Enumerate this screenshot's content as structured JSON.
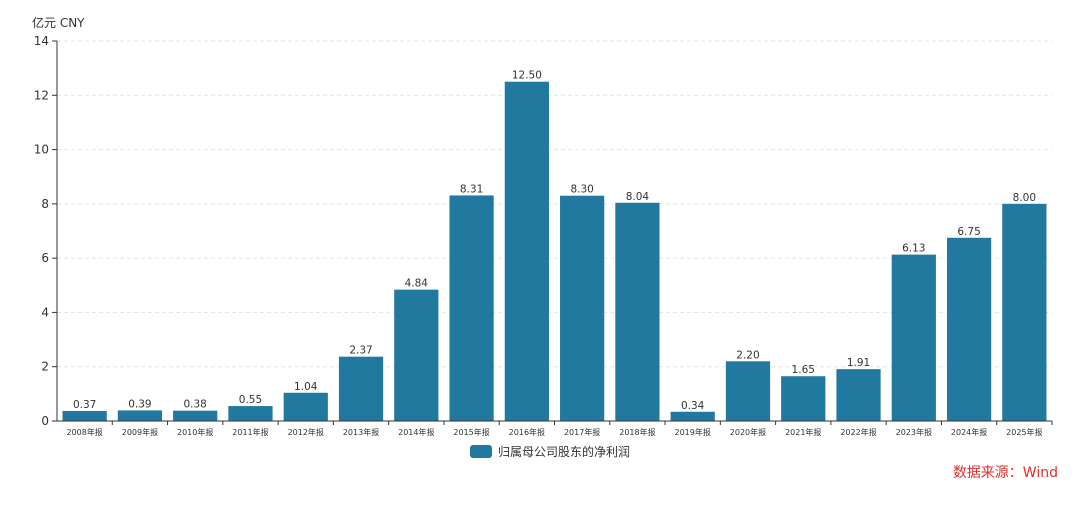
{
  "unit_label": "亿元  CNY",
  "legend_label": "归属母公司股东的净利润",
  "source_text": "数据来源：Wind",
  "colors": {
    "bar": "#21799f",
    "source": "#e0322d",
    "grid": "#e3e3e3",
    "axis": "#333333"
  },
  "chart_data": {
    "type": "bar",
    "categories": [
      "2008年报",
      "2009年报",
      "2010年报",
      "2011年报",
      "2012年报",
      "2013年报",
      "2014年报",
      "2015年报",
      "2016年报",
      "2017年报",
      "2018年报",
      "2019年报",
      "2020年报",
      "2021年报",
      "2022年报",
      "2023年报",
      "2024年报",
      "2025年报"
    ],
    "series": [
      {
        "name": "归属母公司股东的净利润",
        "values": [
          0.37,
          0.39,
          0.38,
          0.55,
          1.04,
          2.37,
          4.84,
          8.31,
          12.5,
          8.3,
          8.04,
          0.34,
          2.2,
          1.65,
          1.91,
          6.13,
          6.75,
          8.0
        ],
        "labels": [
          "0.37",
          "0.39",
          "0.38",
          "0.55",
          "1.04",
          "2.37",
          "4.84",
          "8.31",
          "12.50",
          "8.30",
          "8.04",
          "0.34",
          "2.20",
          "1.65",
          "1.91",
          "6.13",
          "6.75",
          "8.00"
        ]
      }
    ],
    "ylim": [
      0,
      14
    ],
    "yticks": [
      0,
      2,
      4,
      6,
      8,
      10,
      12,
      14
    ],
    "ylabel": "亿元  CNY",
    "grid": true,
    "legend_position": "bottom-center"
  }
}
